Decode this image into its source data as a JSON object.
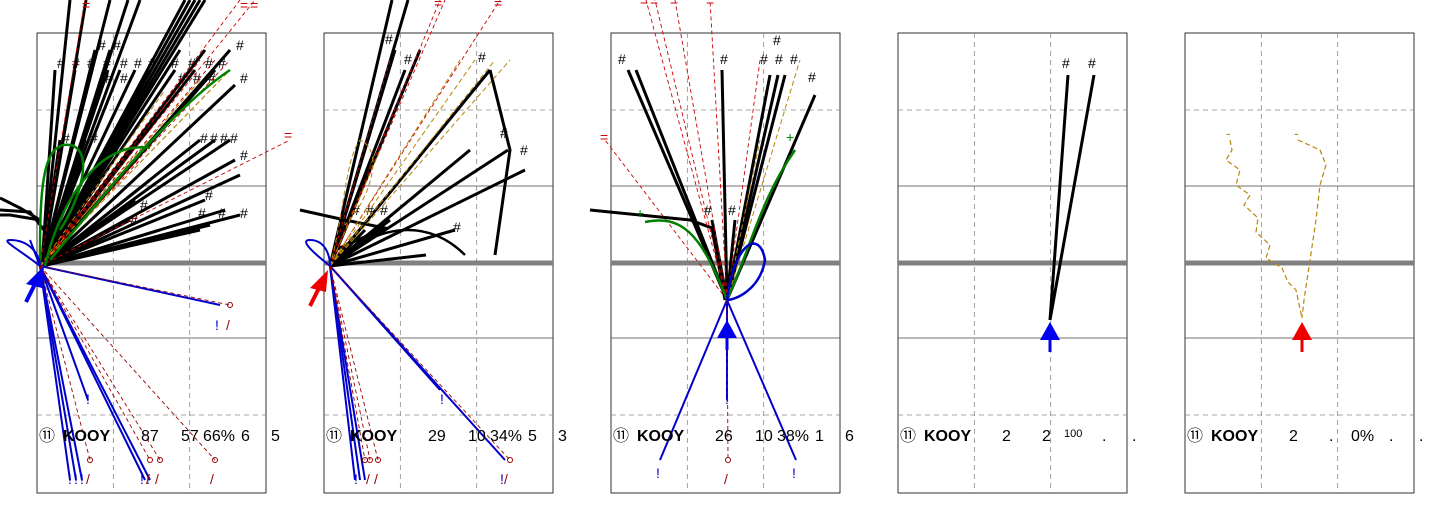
{
  "colors": {
    "made": "#000000",
    "missed": "#cc0000",
    "assist": "#b8860b",
    "foul": "#008000",
    "turnover": "#0000cc",
    "midline": "#808080",
    "team_arrow_a": "#0000ee",
    "team_arrow_b": "#ee0000"
  },
  "chart_data": [
    {
      "type": "scatter",
      "panel": 1,
      "arrow": "blue-up",
      "summary": {
        "badge": "⑪",
        "team": "KOOY",
        "c1": "87",
        "c2": "57",
        "pct": "66%",
        "c4": "6",
        "c5": "5"
      },
      "made_marker": "#",
      "missed_marker": "=",
      "turnover_marker": "!",
      "miss_marker": "/"
    },
    {
      "type": "scatter",
      "panel": 2,
      "arrow": "red-up",
      "summary": {
        "badge": "⑪",
        "team": "KOOY",
        "c1": "29",
        "c2": "10",
        "pct": "34%",
        "c4": "5",
        "c5": "3"
      },
      "made_marker": "#",
      "missed_marker": "=",
      "turnover_marker": "!",
      "miss_marker": "/"
    },
    {
      "type": "scatter",
      "panel": 3,
      "arrow": "blue-up",
      "summary": {
        "badge": "⑪",
        "team": "KOOY",
        "c1": "26",
        "c2": "10",
        "pct": "38%",
        "c4": "1",
        "c5": "6"
      },
      "made_marker": "#",
      "missed_marker": "=",
      "turnover_marker": "!",
      "miss_marker": "/"
    },
    {
      "type": "scatter",
      "panel": 4,
      "arrow": "blue-up",
      "summary": {
        "badge": "⑪",
        "team": "KOOY",
        "c1": "2",
        "c2": "2",
        "pct": "100",
        "c4": ".",
        "c5": "."
      },
      "made_marker": "#"
    },
    {
      "type": "scatter",
      "panel": 5,
      "arrow": "red-up",
      "summary": {
        "badge": "⑪",
        "team": "KOOY",
        "c1": "2",
        "c2": ".",
        "pct": "0%",
        "c4": ".",
        "c5": "."
      },
      "assist_marker": "-"
    }
  ]
}
